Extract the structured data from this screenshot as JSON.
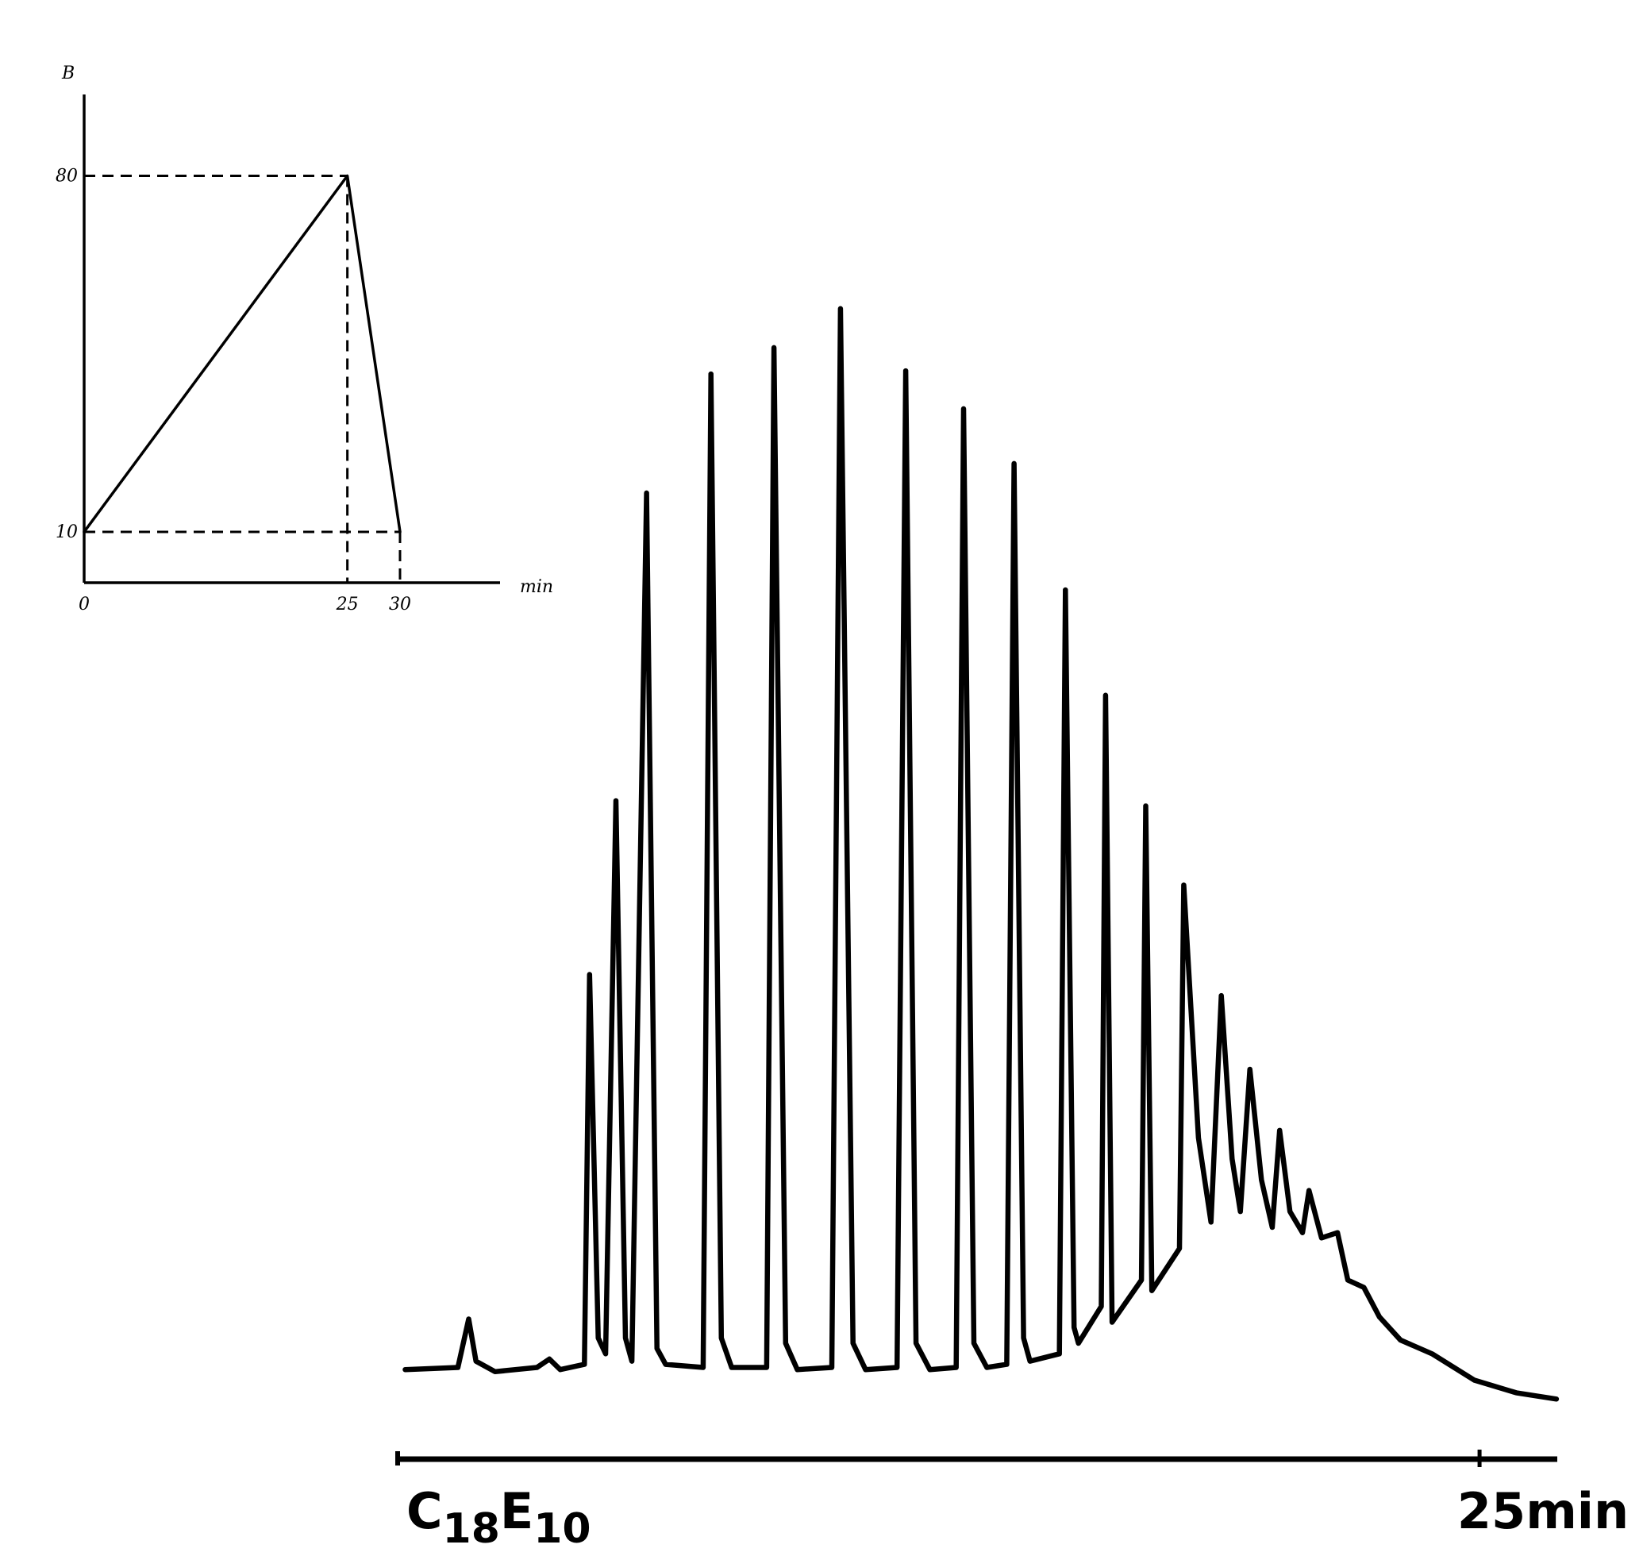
{
  "chart_data": [
    {
      "type": "line",
      "ylabel": "B",
      "xlabel": "min",
      "x": [
        0,
        25,
        30
      ],
      "values": [
        10,
        80,
        10
      ],
      "color": "#000000",
      "xlim": [
        0,
        39.5
      ],
      "ylim": [
        0,
        96
      ],
      "xticks": [
        0,
        25,
        30
      ],
      "yticks": [
        10,
        80
      ],
      "guides": true
    },
    {
      "type": "line",
      "label_parts": [
        "C",
        "18",
        "E",
        "10"
      ],
      "color": "#000000",
      "x": [
        0.12,
        1.34,
        1.59,
        1.76,
        2.2,
        3.17,
        3.46,
        3.71,
        4.27,
        4.39,
        4.59,
        4.76,
        5.0,
        5.22,
        5.37,
        5.71,
        5.95,
        6.15,
        7.02,
        7.2,
        7.44,
        7.68,
        8.49,
        8.66,
        8.93,
        9.2,
        10.0,
        10.2,
        10.49,
        10.78,
        11.51,
        11.71,
        11.95,
        12.27,
        12.88,
        13.05,
        13.29,
        13.59,
        14.05,
        14.22,
        14.44,
        14.59,
        15.27,
        15.41,
        15.61,
        15.71,
        16.24,
        16.34,
        16.49,
        17.17,
        17.27,
        17.41,
        18.05,
        18.15,
        18.49,
        18.78,
        19.02,
        19.27,
        19.46,
        19.68,
        19.95,
        20.2,
        20.37,
        20.61,
        20.9,
        21.05,
        21.34,
        21.71,
        21.95,
        22.32,
        22.68,
        23.17,
        23.9,
        24.88,
        25.85,
        26.78
      ],
      "values": [
        1.0,
        1.2,
        5.8,
        1.8,
        0.8,
        1.2,
        2.0,
        1.0,
        1.5,
        38.5,
        4.0,
        2.5,
        55.0,
        4.0,
        1.8,
        84.2,
        3.0,
        1.5,
        1.2,
        95.5,
        4.0,
        1.2,
        1.2,
        98.0,
        3.5,
        1.0,
        1.2,
        101.7,
        3.5,
        1.0,
        1.2,
        95.8,
        3.5,
        1.0,
        1.2,
        92.2,
        3.5,
        1.2,
        1.5,
        87.0,
        4.0,
        1.8,
        2.5,
        75.0,
        5.0,
        3.5,
        7.0,
        65.0,
        5.5,
        9.5,
        54.5,
        8.5,
        12.5,
        47.0,
        23.0,
        15.0,
        36.5,
        21.0,
        16.0,
        29.5,
        19.0,
        14.5,
        23.7,
        16.0,
        14.0,
        18.0,
        13.5,
        14.0,
        9.5,
        8.8,
        6.0,
        3.8,
        2.5,
        0.0,
        -1.2,
        -1.8
      ],
      "xlim": [
        0,
        26.8
      ],
      "ylim": [
        -2,
        105
      ],
      "xticks": [
        {
          "value": 25,
          "label": "25min"
        }
      ]
    }
  ]
}
